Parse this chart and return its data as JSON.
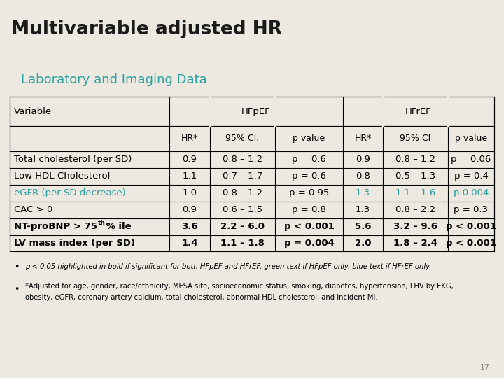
{
  "title": "Multivariable adjusted HR",
  "subtitle": "Laboratory and Imaging Data",
  "title_bg": "#d9d3c8",
  "title_color": "#1a1a1a",
  "subtitle_color": "#2aa0a0",
  "dark_red_line": "#7a1228",
  "bg_color": "#ede9e1",
  "header1": [
    "Variable",
    "HFpEF",
    "HFrEF"
  ],
  "header2": [
    "",
    "HR*",
    "95% CI,",
    "p value",
    "HR*",
    "95% CI",
    "p value"
  ],
  "rows": [
    {
      "cells": [
        "Total cholesterol (per SD)",
        "0.9",
        "0.8 – 1.2",
        "p = 0.6",
        "0.9",
        "0.8 – 1.2",
        "p = 0.06"
      ],
      "bold": [
        false,
        false,
        false,
        false,
        false,
        false,
        false
      ],
      "colors": [
        "black",
        "black",
        "black",
        "black",
        "black",
        "black",
        "black"
      ]
    },
    {
      "cells": [
        "Low HDL-Cholesterol",
        "1.1",
        "0.7 – 1.7",
        "p = 0.6",
        "0.8",
        "0.5 – 1.3",
        "p = 0.4"
      ],
      "bold": [
        false,
        false,
        false,
        false,
        false,
        false,
        false
      ],
      "colors": [
        "black",
        "black",
        "black",
        "black",
        "black",
        "black",
        "black"
      ]
    },
    {
      "cells": [
        "eGFR (per SD decrease)",
        "1.0",
        "0.8 – 1.2",
        "p = 0.95",
        "1.3",
        "1.1 – 1.6",
        "p 0.004"
      ],
      "bold": [
        false,
        false,
        false,
        false,
        false,
        false,
        false
      ],
      "colors": [
        "#2aa0a0",
        "black",
        "black",
        "black",
        "#2aa0a0",
        "#2aa0a0",
        "#2aa0a0"
      ]
    },
    {
      "cells": [
        "CAC > 0",
        "0.9",
        "0.6 – 1.5",
        "p = 0.8",
        "1.3",
        "0.8 – 2.2",
        "p = 0.3"
      ],
      "bold": [
        false,
        false,
        false,
        false,
        false,
        false,
        false
      ],
      "colors": [
        "black",
        "black",
        "black",
        "black",
        "black",
        "black",
        "black"
      ]
    },
    {
      "cells": [
        "NT-proBNP > 75^th % ile",
        "3.6",
        "2.2 – 6.0",
        "p < 0.001",
        "5.6",
        "3.2 – 9.6",
        "p < 0.001"
      ],
      "bold": [
        true,
        true,
        true,
        true,
        true,
        true,
        true
      ],
      "colors": [
        "black",
        "black",
        "black",
        "black",
        "black",
        "black",
        "black"
      ]
    },
    {
      "cells": [
        "LV mass index (per SD)",
        "1.4",
        "1.1 – 1.8",
        "p = 0.004",
        "2.0",
        "1.8 – 2.4",
        "p < 0.001"
      ],
      "bold": [
        true,
        true,
        true,
        true,
        true,
        true,
        true
      ],
      "colors": [
        "black",
        "black",
        "black",
        "black",
        "black",
        "black",
        "black"
      ]
    }
  ],
  "footnote1": "p < 0.05 highlighted in bold if significant for both HFpEF and HFrEF, green text if HFpEF only, blue text if HFrEF only",
  "footnote2_line1": "*Adjusted for age, gender, race/ethnicity, MESA site, socioeconomic status, smoking, diabetes, hypertension, LHV by EKG,",
  "footnote2_line2": "obesity, eGFR, coronary artery calcium, total cholesterol, abnormal HDL cholesterol, and incident MI.",
  "page_number": "17"
}
